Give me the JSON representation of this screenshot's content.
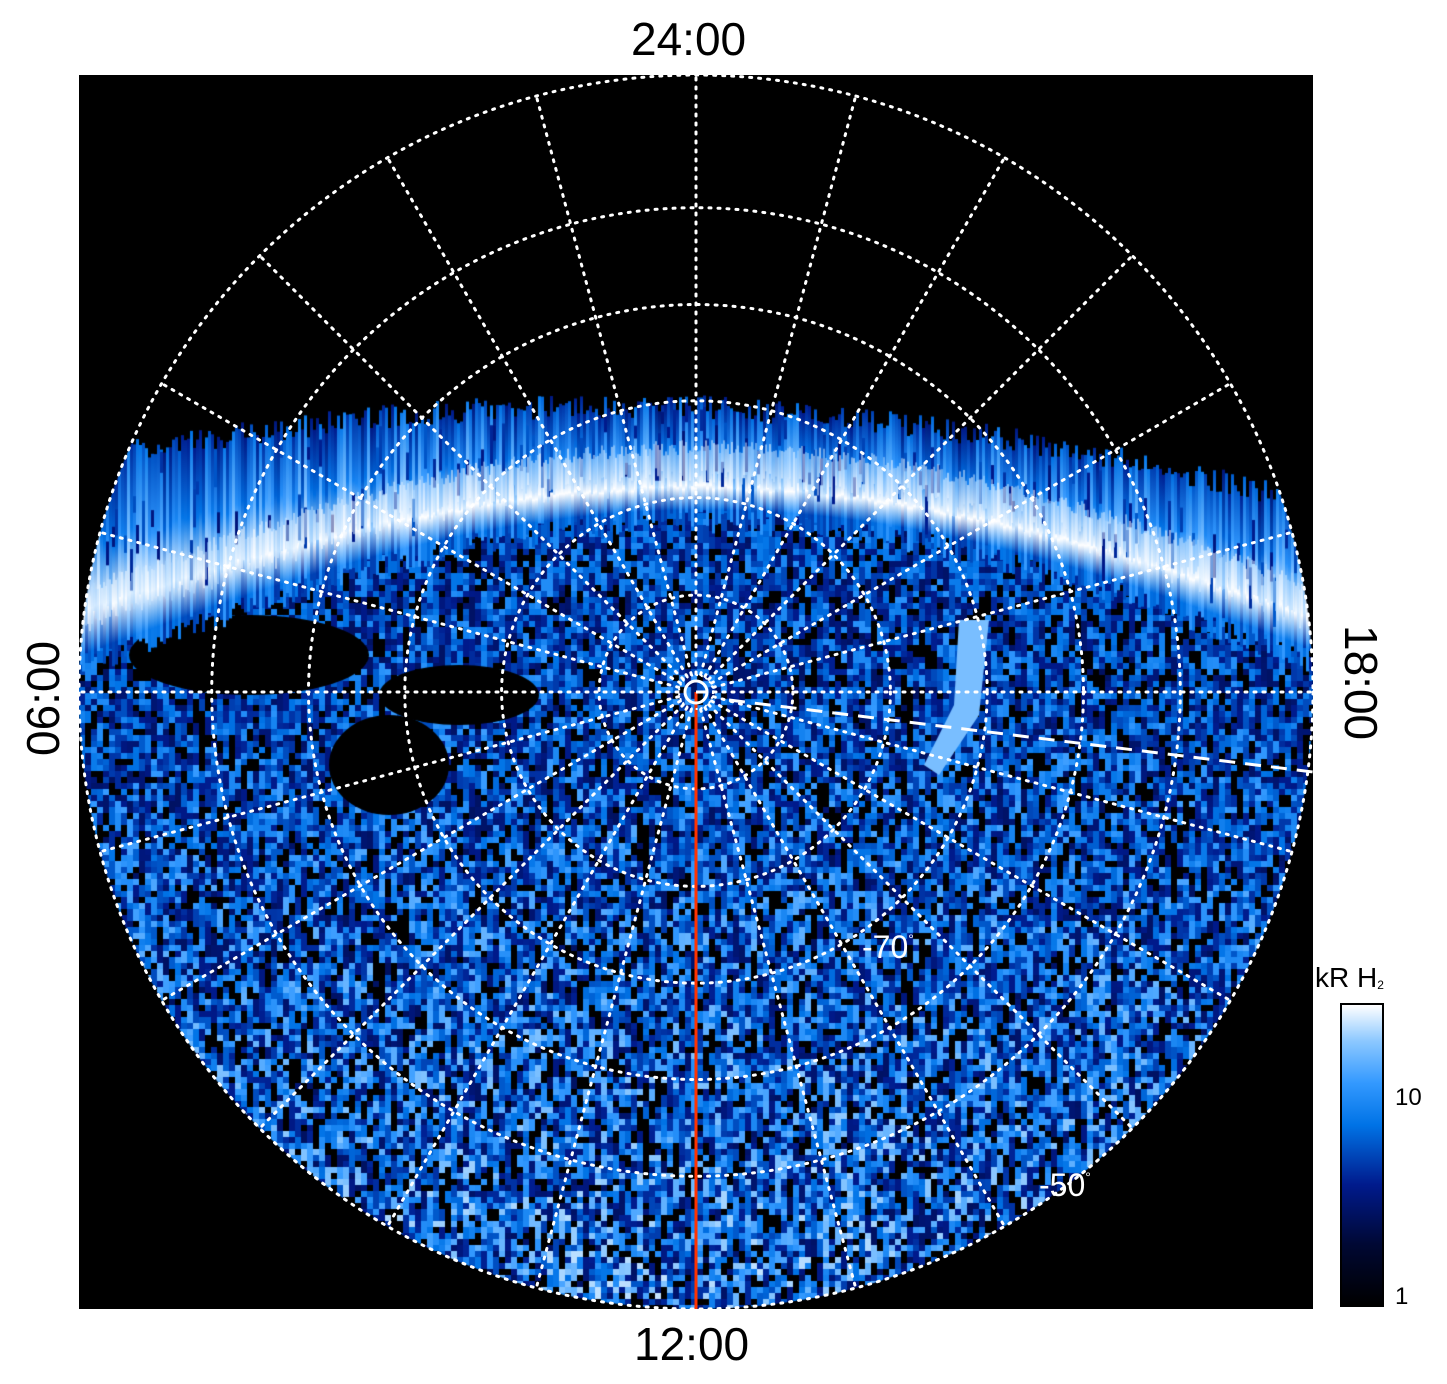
{
  "local_time_labels": {
    "top": "24:00",
    "bottom": "12:00",
    "left": "06:00",
    "right": "18:00"
  },
  "latitude_labels": [
    {
      "value": "-70",
      "unit": "°"
    },
    {
      "value": "-50",
      "unit": "°"
    }
  ],
  "colorbar": {
    "title": "kR H",
    "title_subscript": "2",
    "ticks": [
      "10",
      "1"
    ]
  },
  "colors": {
    "background": "#000000",
    "grid": "#ffffff",
    "noon_meridian": "#ff3300",
    "emission_low": "#001a8c",
    "emission_mid": "#0073e6",
    "emission_high": "#ffffff"
  },
  "icons": [
    "sun-center-icon"
  ]
}
